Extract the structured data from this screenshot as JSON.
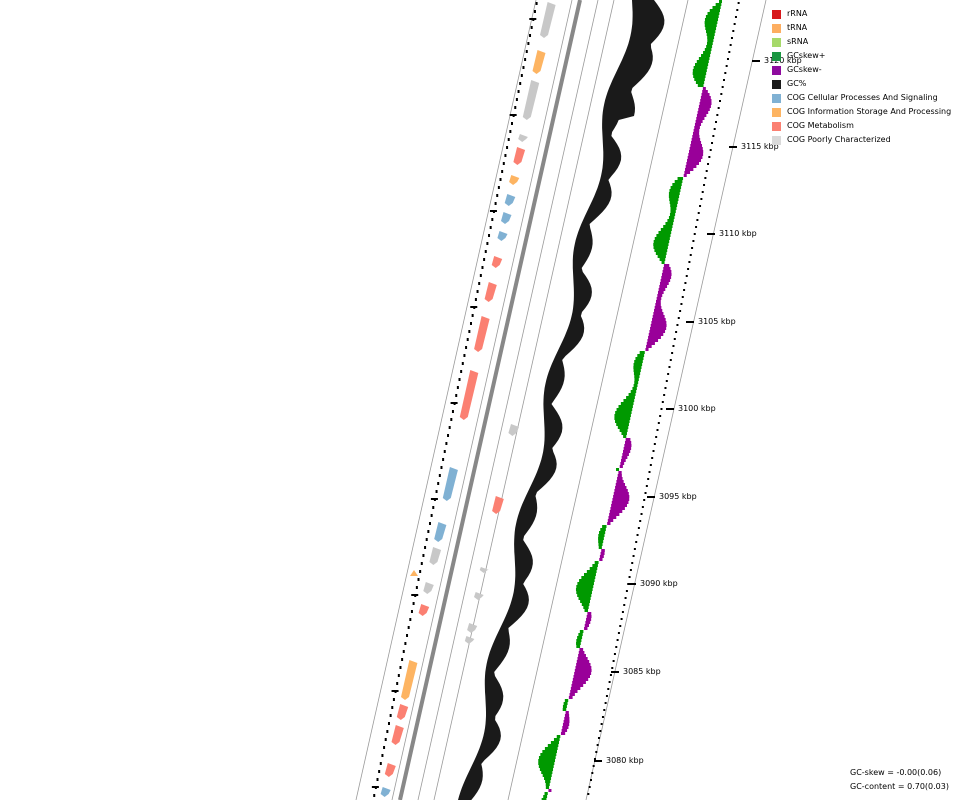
{
  "legend": [
    {
      "label": "rRNA",
      "color": "#d7191c"
    },
    {
      "label": "tRNA",
      "color": "#fdae61"
    },
    {
      "label": "sRNA",
      "color": "#a6d96a"
    },
    {
      "label": "GCskew+",
      "color": "#1a9641"
    },
    {
      "label": "GCskew-",
      "color": "#8e0b9e"
    },
    {
      "label": "GC%",
      "color": "#1a1a1a"
    },
    {
      "label": "COG Cellular Processes And Signaling",
      "color": "#80b1d3"
    },
    {
      "label": "COG Information Storage And Processing",
      "color": "#fdb462"
    },
    {
      "label": "COG Metabolism",
      "color": "#fb8072"
    },
    {
      "label": "COG Poorly Characterized",
      "color": "#d9d9d9"
    }
  ],
  "axis": {
    "unit": "kbp",
    "ticks": [
      "3080 kbp",
      "3085 kbp",
      "3090 kbp",
      "3095 kbp",
      "3100 kbp",
      "3105 kbp",
      "3110 kbp",
      "3115 kbp",
      "3120 kbp"
    ]
  },
  "stats": {
    "gc_skew": "GC-skew = -0.00(0.06)",
    "gc_content": "GC-content = 0.70(0.03)"
  },
  "colors": {
    "backbone": "#888888",
    "gc_skew_plus": "#009900",
    "gc_skew_minus": "#990099",
    "gc_content": "#1a1a1a",
    "cog_cellular": "#80b1d3",
    "cog_information": "#fdb462",
    "cog_metabolism": "#fb8072",
    "cog_poorly": "#c8c8c8"
  }
}
